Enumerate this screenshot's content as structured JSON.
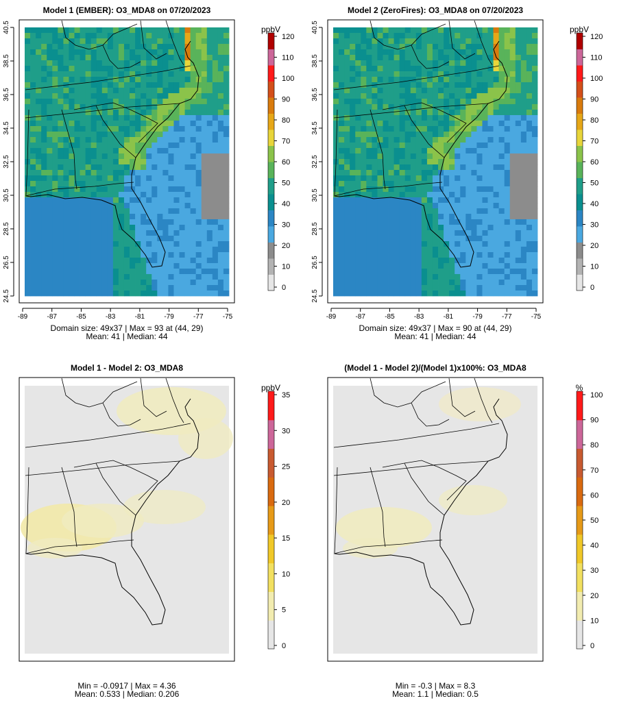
{
  "panels": [
    {
      "id": "p1",
      "title": "Model 1 (EMBER): O3_MDA8 on 07/20/2023",
      "unit": "ppbV",
      "legend_ticks": [
        "0",
        "10",
        "20",
        "30",
        "40",
        "50",
        "60",
        "70",
        "80",
        "90",
        "100",
        "110",
        "120"
      ],
      "x_ticks": [
        "-89",
        "-87",
        "-85",
        "-83",
        "-81",
        "-79",
        "-77",
        "-75"
      ],
      "y_ticks": [
        "24.5",
        "26.5",
        "28.5",
        "30.5",
        "32.5",
        "34.5",
        "36.5",
        "38.5",
        "40.5"
      ],
      "stats_line1": "Domain size: 49x37 | Max = 93 at (44, 29)",
      "stats_line2": "Mean: 41 |  Median: 44"
    },
    {
      "id": "p2",
      "title": "Model 2 (ZeroFires): O3_MDA8 on 07/20/2023",
      "unit": "ppbV",
      "legend_ticks": [
        "0",
        "10",
        "20",
        "30",
        "40",
        "50",
        "60",
        "70",
        "80",
        "90",
        "100",
        "110",
        "120"
      ],
      "x_ticks": [
        "-89",
        "-87",
        "-85",
        "-83",
        "-81",
        "-79",
        "-77",
        "-75"
      ],
      "y_ticks": [
        "24.5",
        "26.5",
        "28.5",
        "30.5",
        "32.5",
        "34.5",
        "36.5",
        "38.5",
        "40.5"
      ],
      "stats_line1": "Domain size: 49x37 | Max = 90 at (44, 29)",
      "stats_line2": "Mean: 41 |  Median: 44"
    },
    {
      "id": "p3",
      "title": "Model 1 - Model 2: O3_MDA8",
      "unit": "ppbV",
      "legend_ticks": [
        "0",
        "5",
        "10",
        "15",
        "20",
        "25",
        "30",
        "35"
      ],
      "stats_line1": "Min = -0.0917 | Max = 4.36",
      "stats_line2": "Mean: 0.533 |  Median: 0.206"
    },
    {
      "id": "p4",
      "title": "(Model 1 - Model 2)/(Model 1)x100%: O3_MDA8",
      "unit": "%",
      "legend_ticks": [
        "0",
        "10",
        "20",
        "30",
        "40",
        "50",
        "60",
        "70",
        "80",
        "90",
        "100"
      ],
      "stats_line1": "Min = -0.3 | Max = 8.3",
      "stats_line2": "Mean: 1.1 |  Median: 0.5"
    }
  ],
  "colors": {
    "ozone_scale": [
      "#e6e6e6",
      "#b3b3b3",
      "#8c8c8c",
      "#4aa8e0",
      "#2b86c4",
      "#0a8f8f",
      "#1f9e89",
      "#59b35a",
      "#8bc34a",
      "#e8d53a",
      "#e6a718",
      "#d97b0d",
      "#d44f1a",
      "#ff1a1a",
      "#cc6699",
      "#b00000"
    ],
    "diff_scale": [
      "#e6e6e6",
      "#f2ecb0",
      "#f2e060",
      "#f0c828",
      "#e69a18",
      "#d96a10",
      "#c85a30",
      "#cc6699",
      "#ff1a1a"
    ]
  }
}
